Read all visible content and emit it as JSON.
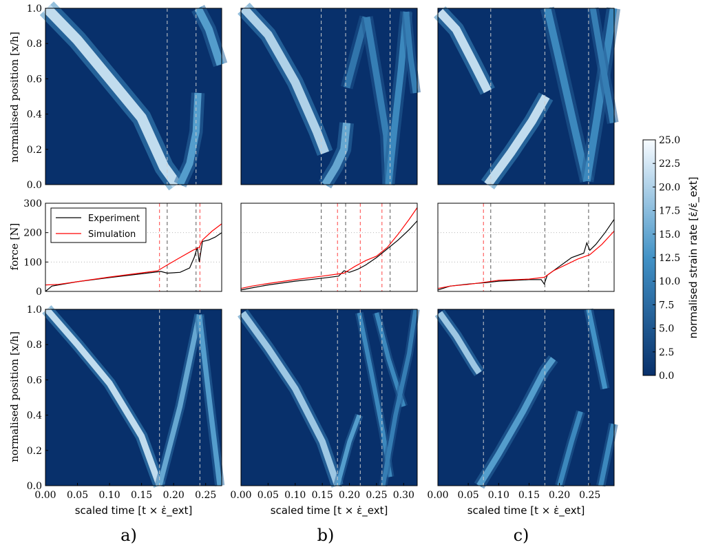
{
  "chart_data": [
    {
      "type": "heatmap",
      "panel": "a",
      "row": "experiment",
      "ylabel": "normalised position [x/h]",
      "xlim": [
        0,
        0.275
      ],
      "ylim": [
        0,
        1
      ],
      "bands": [
        {
          "points": [
            [
              0.002,
              1.0
            ],
            [
              0.05,
              0.82
            ],
            [
              0.1,
              0.6
            ],
            [
              0.15,
              0.38
            ],
            [
              0.185,
              0.1
            ],
            [
              0.205,
              0.0
            ]
          ],
          "intensity": 0.85,
          "width": 0.016
        },
        {
          "points": [
            [
              0.21,
              0.0
            ],
            [
              0.225,
              0.12
            ],
            [
              0.235,
              0.3
            ],
            [
              0.238,
              0.52
            ]
          ],
          "intensity": 0.55,
          "width": 0.011
        },
        {
          "points": [
            [
              0.238,
              1.0
            ],
            [
              0.255,
              0.88
            ],
            [
              0.273,
              0.68
            ]
          ],
          "intensity": 0.55,
          "width": 0.012
        }
      ],
      "dashed_lines_x": [
        0.19,
        0.235
      ]
    },
    {
      "type": "heatmap",
      "panel": "b",
      "row": "experiment",
      "xlim": [
        0,
        0.325
      ],
      "ylim": [
        0,
        1
      ],
      "bands": [
        {
          "points": [
            [
              0.005,
              1.0
            ],
            [
              0.05,
              0.85
            ],
            [
              0.1,
              0.58
            ],
            [
              0.14,
              0.3
            ],
            [
              0.155,
              0.18
            ]
          ],
          "intensity": 0.8,
          "width": 0.016
        },
        {
          "points": [
            [
              0.155,
              0.0
            ],
            [
              0.175,
              0.1
            ],
            [
              0.19,
              0.2
            ],
            [
              0.195,
              0.35
            ]
          ],
          "intensity": 0.6,
          "width": 0.014
        },
        {
          "points": [
            [
              0.195,
              0.55
            ],
            [
              0.215,
              0.78
            ],
            [
              0.23,
              0.95
            ]
          ],
          "intensity": 0.35,
          "width": 0.012
        },
        {
          "points": [
            [
              0.232,
              0.95
            ],
            [
              0.25,
              0.62
            ],
            [
              0.268,
              0.28
            ],
            [
              0.272,
              0.0
            ]
          ],
          "intensity": 0.4,
          "width": 0.012
        },
        {
          "points": [
            [
              0.272,
              0.0
            ],
            [
              0.283,
              0.32
            ],
            [
              0.295,
              0.65
            ],
            [
              0.305,
              0.98
            ]
          ],
          "intensity": 0.45,
          "width": 0.012
        },
        {
          "points": [
            [
              0.305,
              0.98
            ],
            [
              0.313,
              0.72
            ],
            [
              0.322,
              0.52
            ]
          ],
          "intensity": 0.4,
          "width": 0.01
        }
      ],
      "dashed_lines_x": [
        0.148,
        0.193,
        0.275
      ]
    },
    {
      "type": "heatmap",
      "panel": "c",
      "row": "experiment",
      "xlim": [
        0,
        0.29
      ],
      "ylim": [
        0,
        1
      ],
      "bands": [
        {
          "points": [
            [
              0.003,
              0.98
            ],
            [
              0.03,
              0.88
            ],
            [
              0.06,
              0.68
            ],
            [
              0.082,
              0.53
            ]
          ],
          "intensity": 0.85,
          "width": 0.014
        },
        {
          "points": [
            [
              0.082,
              0.0
            ],
            [
              0.12,
              0.18
            ],
            [
              0.155,
              0.36
            ],
            [
              0.178,
              0.5
            ]
          ],
          "intensity": 0.85,
          "width": 0.014
        },
        {
          "points": [
            [
              0.18,
              1.0
            ],
            [
              0.2,
              0.7
            ],
            [
              0.225,
              0.32
            ],
            [
              0.245,
              0.02
            ]
          ],
          "intensity": 0.45,
          "width": 0.012
        },
        {
          "points": [
            [
              0.245,
              0.02
            ],
            [
              0.262,
              0.38
            ],
            [
              0.276,
              0.7
            ],
            [
              0.289,
              1.0
            ]
          ],
          "intensity": 0.45,
          "width": 0.012
        },
        {
          "points": [
            [
              0.255,
              1.0
            ],
            [
              0.27,
              0.7
            ],
            [
              0.288,
              0.35
            ]
          ],
          "intensity": 0.4,
          "width": 0.01
        }
      ],
      "dashed_lines_x": [
        0.087,
        0.176,
        0.248
      ]
    },
    {
      "type": "line",
      "panel": "a",
      "row": "force",
      "ylabel": "force [N]",
      "xlim": [
        0,
        0.275
      ],
      "ylim": [
        0,
        300
      ],
      "yticks": [
        0,
        100,
        200,
        300
      ],
      "grid_y": [
        100,
        200
      ],
      "legend": {
        "position": "top-left",
        "entries": [
          "Experiment",
          "Simulation"
        ]
      },
      "series": [
        {
          "name": "Experiment",
          "color": "#000000",
          "x": [
            0.0,
            0.01,
            0.02,
            0.05,
            0.1,
            0.15,
            0.18,
            0.19,
            0.21,
            0.225,
            0.232,
            0.237,
            0.24,
            0.245,
            0.255,
            0.265,
            0.275
          ],
          "y": [
            0,
            18,
            22,
            33,
            47,
            60,
            68,
            62,
            65,
            80,
            115,
            150,
            100,
            170,
            175,
            185,
            200
          ]
        },
        {
          "name": "Simulation",
          "color": "#ff0000",
          "x": [
            0.0,
            0.02,
            0.05,
            0.1,
            0.15,
            0.175,
            0.19,
            0.21,
            0.23,
            0.24,
            0.245,
            0.26,
            0.275
          ],
          "y": [
            22,
            24,
            33,
            49,
            63,
            70,
            90,
            115,
            140,
            150,
            175,
            205,
            230
          ]
        }
      ],
      "dashed_lines_x": [
        0.19,
        0.235,
        0.178,
        0.241
      ]
    },
    {
      "type": "line",
      "panel": "b",
      "row": "force",
      "xlim": [
        0,
        0.325
      ],
      "ylim": [
        0,
        300
      ],
      "grid_y": [
        100,
        200
      ],
      "series": [
        {
          "name": "Experiment",
          "color": "#000000",
          "x": [
            0.0,
            0.02,
            0.05,
            0.1,
            0.15,
            0.18,
            0.19,
            0.2,
            0.215,
            0.23,
            0.25,
            0.27,
            0.29,
            0.31,
            0.325
          ],
          "y": [
            5,
            12,
            22,
            35,
            45,
            52,
            70,
            65,
            75,
            90,
            115,
            145,
            175,
            210,
            240
          ]
        },
        {
          "name": "Simulation",
          "color": "#ff0000",
          "x": [
            0.0,
            0.02,
            0.05,
            0.1,
            0.15,
            0.19,
            0.21,
            0.23,
            0.25,
            0.27,
            0.29,
            0.31,
            0.325
          ],
          "y": [
            10,
            18,
            27,
            40,
            52,
            62,
            85,
            105,
            120,
            150,
            195,
            245,
            285
          ]
        }
      ],
      "dashed_lines_x": [
        0.148,
        0.193,
        0.275,
        0.178,
        0.22,
        0.26
      ]
    },
    {
      "type": "line",
      "panel": "c",
      "row": "force",
      "xlim": [
        0,
        0.29
      ],
      "ylim": [
        0,
        300
      ],
      "grid_y": [
        100,
        200
      ],
      "series": [
        {
          "name": "Experiment",
          "color": "#000000",
          "x": [
            0.0,
            0.02,
            0.05,
            0.08,
            0.1,
            0.15,
            0.17,
            0.175,
            0.18,
            0.2,
            0.22,
            0.24,
            0.245,
            0.25,
            0.26,
            0.275,
            0.29
          ],
          "y": [
            5,
            18,
            25,
            30,
            35,
            40,
            40,
            25,
            55,
            85,
            115,
            130,
            165,
            140,
            160,
            200,
            245
          ]
        },
        {
          "name": "Simulation",
          "color": "#ff0000",
          "x": [
            0.0,
            0.02,
            0.05,
            0.08,
            0.1,
            0.15,
            0.175,
            0.19,
            0.21,
            0.23,
            0.25,
            0.27,
            0.29
          ],
          "y": [
            10,
            18,
            24,
            32,
            38,
            42,
            48,
            70,
            90,
            110,
            125,
            160,
            205
          ]
        }
      ],
      "dashed_lines_x": [
        0.087,
        0.176,
        0.248,
        0.075
      ]
    },
    {
      "type": "heatmap",
      "panel": "a",
      "row": "simulation",
      "ylabel": "normalised position [x/h]",
      "xlabel": "scaled time [t × ε̇_ext]",
      "xlim": [
        0,
        0.275
      ],
      "ylim": [
        0,
        1
      ],
      "xticks": [
        0.0,
        0.05,
        0.1,
        0.15,
        0.2,
        0.25
      ],
      "bands": [
        {
          "points": [
            [
              0.002,
              1.0
            ],
            [
              0.05,
              0.8
            ],
            [
              0.1,
              0.58
            ],
            [
              0.15,
              0.28
            ],
            [
              0.178,
              0.0
            ]
          ],
          "intensity": 0.85,
          "width": 0.01
        },
        {
          "points": [
            [
              0.178,
              0.0
            ],
            [
              0.21,
              0.45
            ],
            [
              0.24,
              0.97
            ]
          ],
          "intensity": 0.6,
          "width": 0.008
        },
        {
          "points": [
            [
              0.24,
              0.97
            ],
            [
              0.257,
              0.45
            ],
            [
              0.272,
              0.0
            ]
          ],
          "intensity": 0.55,
          "width": 0.008
        }
      ],
      "dashed_lines_x": [
        0.178,
        0.241
      ]
    },
    {
      "type": "heatmap",
      "panel": "b",
      "row": "simulation",
      "xlabel": "scaled time [t × ε̇_ext]",
      "xlim": [
        0,
        0.325
      ],
      "ylim": [
        0,
        1
      ],
      "xticks": [
        0.0,
        0.05,
        0.1,
        0.15,
        0.2,
        0.25,
        0.3
      ],
      "bands": [
        {
          "points": [
            [
              0.003,
              0.98
            ],
            [
              0.05,
              0.78
            ],
            [
              0.1,
              0.55
            ],
            [
              0.15,
              0.25
            ],
            [
              0.178,
              0.0
            ]
          ],
          "intensity": 0.75,
          "width": 0.012
        },
        {
          "points": [
            [
              0.178,
              0.0
            ],
            [
              0.2,
              0.25
            ],
            [
              0.218,
              0.4
            ]
          ],
          "intensity": 0.55,
          "width": 0.008
        },
        {
          "points": [
            [
              0.218,
              0.98
            ],
            [
              0.24,
              0.65
            ],
            [
              0.262,
              0.3
            ],
            [
              0.275,
              0.05
            ]
          ],
          "intensity": 0.45,
          "width": 0.008
        },
        {
          "points": [
            [
              0.25,
              0.98
            ],
            [
              0.272,
              0.72
            ],
            [
              0.3,
              0.45
            ]
          ],
          "intensity": 0.45,
          "width": 0.008
        },
        {
          "points": [
            [
              0.262,
              0.0
            ],
            [
              0.285,
              0.4
            ],
            [
              0.31,
              0.75
            ],
            [
              0.322,
              1.0
            ]
          ],
          "intensity": 0.4,
          "width": 0.008
        }
      ],
      "dashed_lines_x": [
        0.178,
        0.22,
        0.26
      ]
    },
    {
      "type": "heatmap",
      "panel": "c",
      "row": "simulation",
      "xlabel": "scaled time [t × ε̇_ext]",
      "xlim": [
        0,
        0.29
      ],
      "ylim": [
        0,
        1
      ],
      "xticks": [
        0.0,
        0.05,
        0.1,
        0.15,
        0.2,
        0.25
      ],
      "bands": [
        {
          "points": [
            [
              0.003,
              0.98
            ],
            [
              0.03,
              0.85
            ],
            [
              0.06,
              0.68
            ],
            [
              0.068,
              0.64
            ]
          ],
          "intensity": 0.75,
          "width": 0.01
        },
        {
          "points": [
            [
              0.068,
              0.0
            ],
            [
              0.1,
              0.18
            ],
            [
              0.14,
              0.42
            ],
            [
              0.175,
              0.65
            ],
            [
              0.19,
              0.72
            ]
          ],
          "intensity": 0.55,
          "width": 0.01
        },
        {
          "points": [
            [
              0.2,
              0.0
            ],
            [
              0.22,
              0.25
            ],
            [
              0.235,
              0.42
            ]
          ],
          "intensity": 0.45,
          "width": 0.008
        },
        {
          "points": [
            [
              0.248,
              1.0
            ],
            [
              0.26,
              0.8
            ],
            [
              0.275,
              0.55
            ]
          ],
          "intensity": 0.5,
          "width": 0.008
        },
        {
          "points": [
            [
              0.268,
              0.0
            ],
            [
              0.28,
              0.2
            ],
            [
              0.289,
              0.35
            ]
          ],
          "intensity": 0.45,
          "width": 0.008
        }
      ],
      "dashed_lines_x": [
        0.075,
        0.176,
        0.248
      ]
    }
  ],
  "colorbar": {
    "label": "normalised strain rate [ε̇/ε̇_ext]",
    "min": 0.0,
    "max": 25.0,
    "ticks": [
      "0.0",
      "2.5",
      "5.0",
      "7.5",
      "10.0",
      "12.5",
      "15.0",
      "17.5",
      "20.0",
      "22.5",
      "25.0"
    ],
    "color_low": "#08306b",
    "color_high": "#f7fbff"
  },
  "labels": {
    "ylabel_heatmap": "normalised position [x/h]",
    "ylabel_force": "force [N]",
    "xlabel": "scaled time [t × ε̇_ext]",
    "legend_experiment": "Experiment",
    "legend_simulation": "Simulation",
    "panel_a": "a)",
    "panel_b": "b)",
    "panel_c": "c)"
  },
  "colors": {
    "heatmap_bg": "#08306b",
    "experiment": "#000000",
    "simulation": "#ff0000",
    "dashed_top": "#cccccc",
    "dashed_force": "#555555",
    "dashed_red": "#ff4040"
  }
}
